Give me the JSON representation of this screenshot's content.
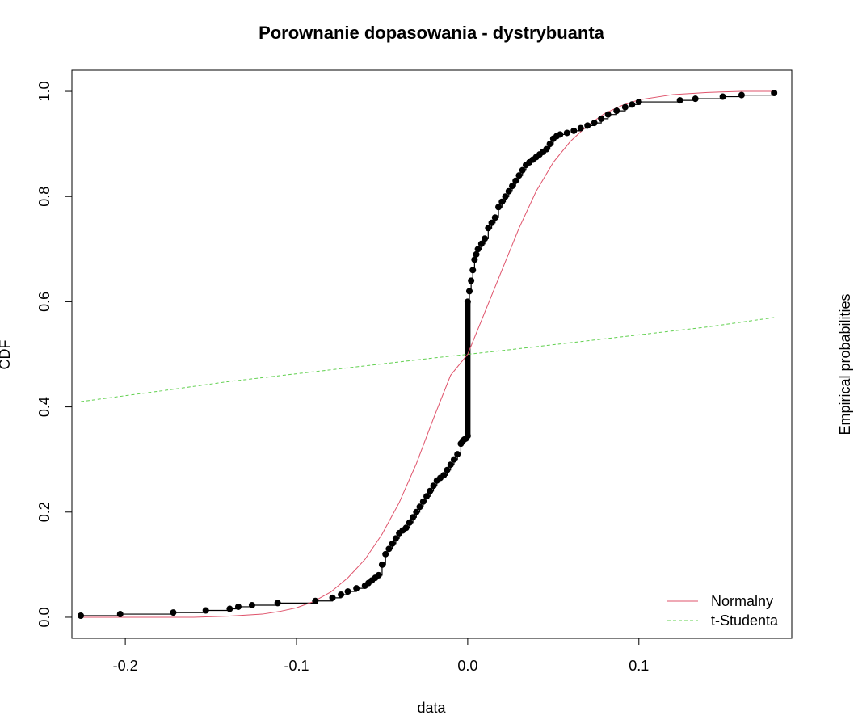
{
  "chart_data": {
    "type": "line",
    "title": "Porownanie dopasowania - dystrybuanta",
    "xlabel": "data",
    "ylabel": "CDF",
    "ylabel_right": "Empirical probabilities",
    "xlim": [
      -0.2312,
      0.1893
    ],
    "ylim": [
      -0.04,
      1.04
    ],
    "x_ticks": [
      -0.2,
      -0.1,
      0.0,
      0.1
    ],
    "x_tick_labels": [
      "-0.2",
      "-0.1",
      "0.0",
      "0.1"
    ],
    "y_ticks": [
      0.0,
      0.2,
      0.4,
      0.6,
      0.8,
      1.0
    ],
    "y_tick_labels": [
      "0.0",
      "0.2",
      "0.4",
      "0.6",
      "0.8",
      "1.0"
    ],
    "grid": false,
    "legend": {
      "position": "bottom-right",
      "entries": [
        {
          "label": "Normalny",
          "color": "#DF536B",
          "dash": "solid"
        },
        {
          "label": "t-Studenta",
          "color": "#61D04F",
          "dash": "dashed"
        }
      ]
    },
    "empirical": {
      "name": "empirical",
      "color": "#000000",
      "x": [
        -0.226,
        -0.203,
        -0.172,
        -0.153,
        -0.139,
        -0.134,
        -0.126,
        -0.111,
        -0.089,
        -0.079,
        -0.074,
        -0.07,
        -0.065,
        -0.06,
        -0.058,
        -0.056,
        -0.054,
        -0.052,
        -0.05,
        -0.048,
        -0.046,
        -0.044,
        -0.042,
        -0.04,
        -0.038,
        -0.036,
        -0.034,
        -0.032,
        -0.03,
        -0.028,
        -0.026,
        -0.024,
        -0.022,
        -0.02,
        -0.018,
        -0.016,
        -0.014,
        -0.012,
        -0.01,
        -0.008,
        -0.006,
        -0.004,
        -0.003,
        -0.002,
        -0.001,
        0.0,
        0.0,
        0.001,
        0.002,
        0.003,
        0.004,
        0.005,
        0.006,
        0.008,
        0.01,
        0.012,
        0.014,
        0.016,
        0.018,
        0.02,
        0.022,
        0.024,
        0.026,
        0.028,
        0.03,
        0.032,
        0.034,
        0.036,
        0.038,
        0.04,
        0.042,
        0.044,
        0.046,
        0.048,
        0.05,
        0.052,
        0.054,
        0.058,
        0.062,
        0.066,
        0.07,
        0.074,
        0.078,
        0.082,
        0.087,
        0.092,
        0.096,
        0.1,
        0.124,
        0.133,
        0.149,
        0.16,
        0.179
      ],
      "y": [
        0.003,
        0.006,
        0.009,
        0.013,
        0.016,
        0.02,
        0.023,
        0.027,
        0.031,
        0.037,
        0.043,
        0.049,
        0.055,
        0.06,
        0.065,
        0.07,
        0.075,
        0.08,
        0.1,
        0.12,
        0.13,
        0.14,
        0.15,
        0.16,
        0.165,
        0.17,
        0.18,
        0.19,
        0.2,
        0.21,
        0.22,
        0.23,
        0.24,
        0.25,
        0.26,
        0.265,
        0.27,
        0.28,
        0.29,
        0.3,
        0.31,
        0.33,
        0.335,
        0.338,
        0.34,
        0.345,
        0.6,
        0.62,
        0.64,
        0.66,
        0.68,
        0.69,
        0.7,
        0.71,
        0.72,
        0.74,
        0.75,
        0.76,
        0.78,
        0.79,
        0.8,
        0.81,
        0.82,
        0.83,
        0.84,
        0.85,
        0.86,
        0.865,
        0.87,
        0.875,
        0.88,
        0.885,
        0.89,
        0.9,
        0.91,
        0.915,
        0.918,
        0.921,
        0.925,
        0.93,
        0.935,
        0.94,
        0.948,
        0.956,
        0.963,
        0.97,
        0.975,
        0.98,
        0.983,
        0.986,
        0.99,
        0.993,
        0.997
      ]
    },
    "series": [
      {
        "name": "Normalny",
        "color": "#DF536B",
        "dash": "solid",
        "x": [
          -0.226,
          -0.2,
          -0.18,
          -0.16,
          -0.14,
          -0.12,
          -0.11,
          -0.1,
          -0.09,
          -0.08,
          -0.07,
          -0.06,
          -0.05,
          -0.04,
          -0.03,
          -0.02,
          -0.01,
          0.0,
          0.01,
          0.02,
          0.03,
          0.04,
          0.05,
          0.06,
          0.07,
          0.08,
          0.09,
          0.1,
          0.12,
          0.14,
          0.16,
          0.179
        ],
        "y": [
          0.0,
          0.0,
          0.0,
          0.0,
          0.002,
          0.006,
          0.011,
          0.018,
          0.03,
          0.048,
          0.075,
          0.11,
          0.158,
          0.218,
          0.292,
          0.378,
          0.46,
          0.5,
          0.58,
          0.66,
          0.74,
          0.81,
          0.865,
          0.905,
          0.935,
          0.958,
          0.973,
          0.984,
          0.994,
          0.998,
          1.0,
          1.0
        ]
      },
      {
        "name": "t-Studenta",
        "color": "#61D04F",
        "dash": "dashed",
        "x": [
          -0.226,
          -0.18,
          -0.14,
          -0.1,
          -0.06,
          -0.02,
          0.0,
          0.02,
          0.06,
          0.1,
          0.14,
          0.179
        ],
        "y": [
          0.41,
          0.43,
          0.448,
          0.463,
          0.478,
          0.493,
          0.5,
          0.507,
          0.522,
          0.537,
          0.552,
          0.57
        ]
      }
    ]
  }
}
